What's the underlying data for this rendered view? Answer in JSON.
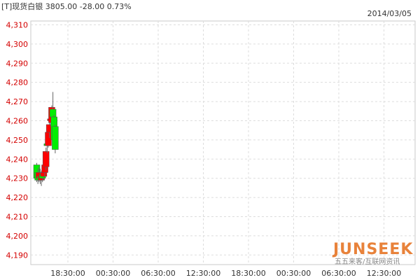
{
  "header": {
    "title": "[T]现货白银 3805.00 -28.00 0.73%",
    "date": "2014/03/05"
  },
  "chart_data": {
    "type": "candlestick",
    "ylim": [
      4185,
      4312
    ],
    "y_ticks": [
      4190,
      4200,
      4210,
      4220,
      4230,
      4240,
      4250,
      4260,
      4270,
      4280,
      4290,
      4300,
      4310
    ],
    "y_tick_labels": [
      "4,190",
      "4,200",
      "4,210",
      "4,220",
      "4,230",
      "4,240",
      "4,250",
      "4,260",
      "4,270",
      "4,280",
      "4,290",
      "4,300",
      "4,310"
    ],
    "x_tick_labels": [
      "18:30:00",
      "00:30:00",
      "06:30:00",
      "12:30:00",
      "18:30:00",
      "00:30:00",
      "06:30:00",
      "12:30:00"
    ],
    "grid": true,
    "up_color": "#ff0000",
    "down_color": "#00ee00",
    "candles": [
      {
        "open": 4237,
        "high": 4238,
        "low": 4228,
        "close": 4230
      },
      {
        "open": 4233,
        "high": 4235,
        "low": 4227,
        "close": 4229
      },
      {
        "open": 4230,
        "high": 4236,
        "low": 4228,
        "close": 4233
      },
      {
        "open": 4231,
        "high": 4235,
        "low": 4227,
        "close": 4229
      },
      {
        "open": 4229,
        "high": 4234,
        "low": 4226,
        "close": 4231
      },
      {
        "open": 4232,
        "high": 4236,
        "low": 4228,
        "close": 4230
      },
      {
        "open": 4231,
        "high": 4236,
        "low": 4229,
        "close": 4233
      },
      {
        "open": 4233,
        "high": 4238,
        "low": 4231,
        "close": 4237
      },
      {
        "open": 4236,
        "high": 4246,
        "low": 4234,
        "close": 4244
      },
      {
        "open": 4248,
        "high": 4250,
        "low": 4243,
        "close": 4247
      },
      {
        "open": 4247,
        "high": 4256,
        "low": 4246,
        "close": 4254
      },
      {
        "open": 4254,
        "high": 4260,
        "low": 4251,
        "close": 4258
      },
      {
        "open": 4260,
        "high": 4263,
        "low": 4257,
        "close": 4261
      },
      {
        "open": 4259,
        "high": 4268,
        "low": 4258,
        "close": 4267
      },
      {
        "open": 4266,
        "high": 4275,
        "low": 4258,
        "close": 4262
      },
      {
        "open": 4262,
        "high": 4263,
        "low": 4245,
        "close": 4250
      },
      {
        "open": 4257,
        "high": 4258,
        "low": 4243,
        "close": 4245
      }
    ]
  },
  "watermark": {
    "logo": "JUNSEEK",
    "subtitle": "五五来客/互联网资讯",
    "logo_color": "#e8823a"
  }
}
